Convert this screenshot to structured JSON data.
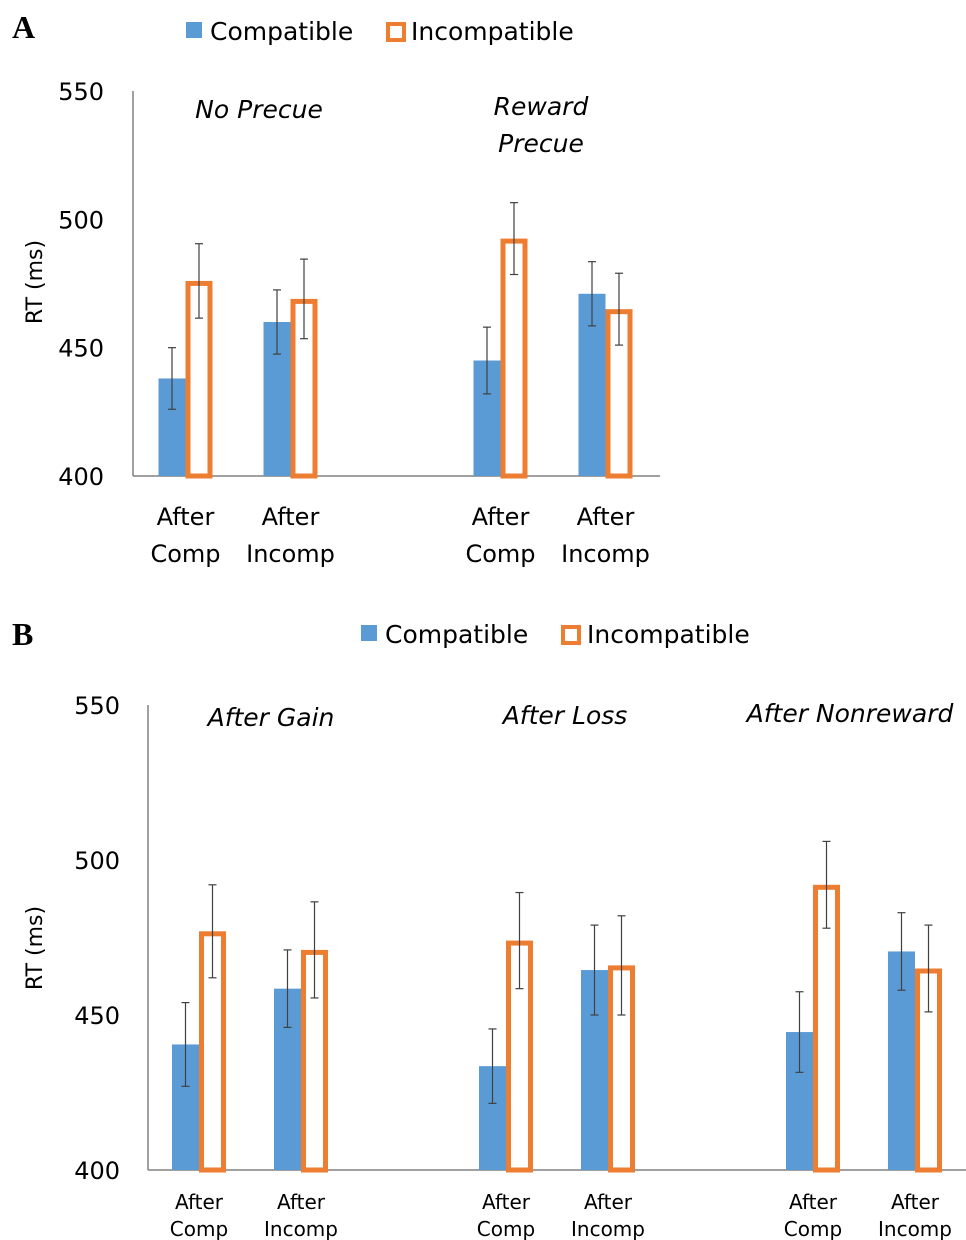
{
  "colors": {
    "compatible": "#5B9BD5",
    "incompatible": "#ED7D31",
    "axis": "#808080",
    "errorbar": "#404040"
  },
  "chart_data": [
    {
      "panel": "A",
      "type": "bar",
      "legend": [
        "Compatible",
        "Incompatible"
      ],
      "legend_position": "top",
      "ylabel": "RT (ms)",
      "ylim": [
        400,
        550
      ],
      "yticks": [
        "400",
        "450",
        "500",
        "550"
      ],
      "grid": false,
      "groups": [
        {
          "title": [
            "No Precue"
          ],
          "categories": [
            [
              "After",
              "Comp"
            ],
            [
              "After",
              "Incomp"
            ]
          ],
          "compatible": [
            438,
            460
          ],
          "incompatible": [
            476,
            469
          ],
          "compatible_err": [
            12,
            12.5
          ],
          "incompatible_err": [
            14.5,
            15.5
          ]
        },
        {
          "title": [
            "Reward",
            "Precue"
          ],
          "categories": [
            [
              "After",
              "Comp"
            ],
            [
              "After",
              "Incomp"
            ]
          ],
          "compatible": [
            445,
            471
          ],
          "incompatible": [
            492.5,
            465
          ],
          "compatible_err": [
            13,
            12.5
          ],
          "incompatible_err": [
            14,
            14
          ]
        }
      ]
    },
    {
      "panel": "B",
      "type": "bar",
      "legend": [
        "Compatible",
        "Incompatible"
      ],
      "legend_position": "top",
      "ylabel": "RT (ms)",
      "ylim": [
        400,
        550
      ],
      "yticks": [
        "400",
        "450",
        "500",
        "550"
      ],
      "grid": false,
      "groups": [
        {
          "title": [
            "After Gain"
          ],
          "categories": [
            [
              "After",
              "Comp"
            ],
            [
              "After",
              "Incomp"
            ]
          ],
          "compatible": [
            440.5,
            458.5
          ],
          "incompatible": [
            477,
            471
          ],
          "compatible_err": [
            13.5,
            12.5
          ],
          "incompatible_err": [
            15,
            15.5
          ]
        },
        {
          "title": [
            "After Loss"
          ],
          "categories": [
            [
              "After",
              "Comp"
            ],
            [
              "After",
              "Incomp"
            ]
          ],
          "compatible": [
            433.5,
            464.5
          ],
          "incompatible": [
            474,
            466
          ],
          "compatible_err": [
            12,
            14.5
          ],
          "incompatible_err": [
            15.5,
            16
          ]
        },
        {
          "title": [
            "After Nonreward"
          ],
          "categories": [
            [
              "After",
              "Comp"
            ],
            [
              "After",
              "Incomp"
            ]
          ],
          "compatible": [
            444.5,
            470.5
          ],
          "incompatible": [
            492,
            465
          ],
          "compatible_err": [
            13,
            12.5
          ],
          "incompatible_err": [
            14,
            14
          ]
        }
      ]
    }
  ]
}
